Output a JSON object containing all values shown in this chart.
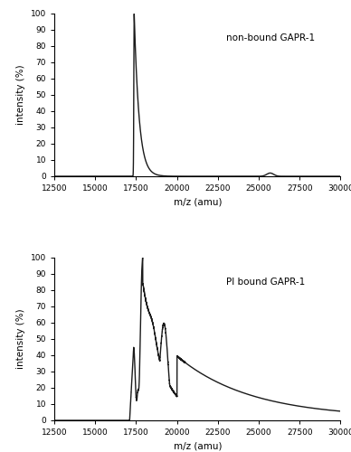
{
  "xlim": [
    12500,
    30000
  ],
  "ylim": [
    0,
    100
  ],
  "xlabel": "m/z (amu)",
  "ylabel": "intensity (%)",
  "xticks": [
    12500,
    15000,
    17500,
    20000,
    22500,
    25000,
    27500,
    30000
  ],
  "yticks": [
    0,
    10,
    20,
    30,
    40,
    50,
    60,
    70,
    80,
    90,
    100
  ],
  "top_label": "non-bound GAPR-1",
  "bottom_label": "PI bound GAPR-1",
  "line_color": "#1a1a1a",
  "line_width": 1.0,
  "background_color": "#ffffff"
}
